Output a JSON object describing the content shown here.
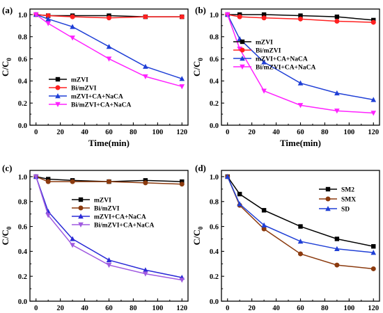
{
  "chart_data": [
    {
      "type": "line",
      "panel_label": "(a)",
      "xlabel": "Time(min)",
      "ylabel": "C/C",
      "ylabel_sub": "0",
      "xlim": [
        -5,
        125
      ],
      "ylim": [
        0,
        1.05
      ],
      "x_ticks": [
        "0",
        "20",
        "40",
        "60",
        "80",
        "100",
        "120"
      ],
      "y_ticks": [
        "0.0",
        "0.2",
        "0.4",
        "0.6",
        "0.8",
        "1.0"
      ],
      "x": [
        0,
        10,
        30,
        60,
        90,
        120
      ],
      "legend_position": "lower-left",
      "series": [
        {
          "name": "mZVI",
          "color": "#000000",
          "marker": "square",
          "values": [
            1.0,
            0.99,
            0.99,
            0.99,
            0.98,
            0.98
          ]
        },
        {
          "name": "Bi/mZVI",
          "color": "#ff2020",
          "marker": "circle",
          "values": [
            1.0,
            0.99,
            0.98,
            0.97,
            0.98,
            0.98
          ]
        },
        {
          "name": "mZVI+CA+NaCA",
          "color": "#1f3fd6",
          "marker": "triangle",
          "values": [
            1.0,
            0.96,
            0.89,
            0.71,
            0.53,
            0.42
          ]
        },
        {
          "name": "Bi/mZVI+CA+NaCA",
          "color": "#ff22ff",
          "marker": "triangle-down",
          "values": [
            1.0,
            0.92,
            0.79,
            0.6,
            0.44,
            0.35
          ]
        }
      ]
    },
    {
      "type": "line",
      "panel_label": "(b)",
      "xlabel": "Time(min)",
      "ylabel": "C/C",
      "ylabel_sub": "0",
      "xlim": [
        -5,
        125
      ],
      "ylim": [
        0,
        1.05
      ],
      "x_ticks": [
        "0",
        "20",
        "40",
        "60",
        "80",
        "100",
        "120"
      ],
      "y_ticks": [
        "0.0",
        "0.2",
        "0.4",
        "0.6",
        "0.8",
        "1.0"
      ],
      "x": [
        0,
        10,
        30,
        60,
        90,
        120
      ],
      "legend_position": "center-left",
      "series": [
        {
          "name": "mZVI",
          "color": "#000000",
          "marker": "square",
          "values": [
            1.0,
            1.0,
            1.0,
            0.99,
            0.98,
            0.95
          ]
        },
        {
          "name": "Bi/mZVI",
          "color": "#ff2020",
          "marker": "circle",
          "values": [
            1.0,
            0.98,
            0.97,
            0.96,
            0.94,
            0.93
          ]
        },
        {
          "name": "mZVI+CA+NaCA",
          "color": "#1f3fd6",
          "marker": "triangle",
          "values": [
            1.0,
            0.78,
            0.57,
            0.38,
            0.29,
            0.23
          ]
        },
        {
          "name": "Bi/mZVI+CA+NaCA",
          "color": "#ff22ff",
          "marker": "triangle-down",
          "values": [
            1.0,
            0.69,
            0.31,
            0.18,
            0.13,
            0.11
          ]
        }
      ]
    },
    {
      "type": "line",
      "panel_label": "(c)",
      "xlabel": "Time(min)",
      "ylabel": "C/C",
      "ylabel_sub": "0",
      "xlim": [
        -5,
        125
      ],
      "ylim": [
        0,
        1.05
      ],
      "x_ticks": [
        "0",
        "20",
        "40",
        "60",
        "80",
        "100",
        "120"
      ],
      "y_ticks": [
        "0.0",
        "0.2",
        "0.4",
        "0.6",
        "0.8",
        "1.0"
      ],
      "x": [
        0,
        10,
        30,
        60,
        90,
        120
      ],
      "legend_position": "center-right",
      "series": [
        {
          "name": "mZVI",
          "color": "#000000",
          "marker": "square",
          "values": [
            1.0,
            0.98,
            0.97,
            0.96,
            0.97,
            0.96
          ]
        },
        {
          "name": "Bi/mZVI",
          "color": "#8b3a0e",
          "marker": "circle",
          "values": [
            1.0,
            0.96,
            0.96,
            0.96,
            0.95,
            0.94
          ]
        },
        {
          "name": "mZVI+CA+NaCA",
          "color": "#2a2ad6",
          "marker": "triangle",
          "values": [
            1.0,
            0.72,
            0.5,
            0.33,
            0.25,
            0.19
          ]
        },
        {
          "name": "Bi/mZVI+CA+NaCA",
          "color": "#a05ae0",
          "marker": "triangle-down",
          "values": [
            1.0,
            0.69,
            0.45,
            0.29,
            0.22,
            0.17
          ]
        }
      ]
    },
    {
      "type": "line",
      "panel_label": "(d)",
      "xlabel": "Time(min)",
      "ylabel": "C/C",
      "ylabel_sub": "0",
      "xlim": [
        -5,
        125
      ],
      "ylim": [
        0,
        1.05
      ],
      "x_ticks": [
        "0",
        "20",
        "40",
        "60",
        "80",
        "100",
        "120"
      ],
      "y_ticks": [
        "0.0",
        "0.2",
        "0.4",
        "0.6",
        "0.8",
        "1.0"
      ],
      "x": [
        0,
        10,
        30,
        60,
        90,
        120
      ],
      "legend_position": "top-right",
      "series": [
        {
          "name": "SM2",
          "color": "#000000",
          "marker": "square",
          "values": [
            1.0,
            0.86,
            0.73,
            0.6,
            0.5,
            0.44
          ]
        },
        {
          "name": "SMX",
          "color": "#8b3a0e",
          "marker": "circle",
          "values": [
            1.0,
            0.77,
            0.58,
            0.38,
            0.29,
            0.26
          ]
        },
        {
          "name": "SD",
          "color": "#1f3fd6",
          "marker": "triangle",
          "values": [
            1.0,
            0.78,
            0.61,
            0.48,
            0.42,
            0.39
          ]
        }
      ]
    }
  ]
}
